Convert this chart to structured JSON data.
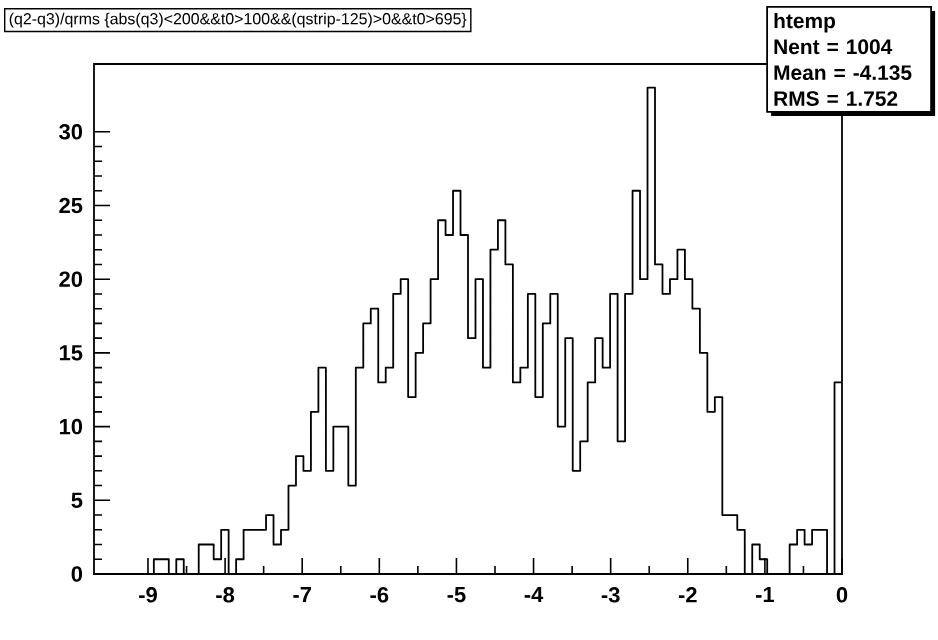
{
  "chart_data": {
    "type": "histogram",
    "title": "(q2-q3)/qrms {abs(q3)<200&&t0>100&&(qstrip-125)>0&&t0>695}",
    "annotations": [
      "htemp",
      "Nent = 1004",
      "Mean  = -4.135",
      "RMS   = 1.752"
    ],
    "bins": [
      -9.7,
      -9.603,
      -9.506,
      -9.409,
      -9.312,
      -9.215,
      -9.118,
      -9.021,
      -8.924,
      -8.827,
      -8.73,
      -8.633,
      -8.536,
      -8.439,
      -8.342,
      -8.245,
      -8.148,
      -8.051,
      -7.954,
      -7.857,
      -7.76,
      -7.663,
      -7.566,
      -7.469,
      -7.372,
      -7.275,
      -7.178,
      -7.081,
      -6.984,
      -6.887,
      -6.79,
      -6.693,
      -6.596,
      -6.499,
      -6.402,
      -6.305,
      -6.208,
      -6.111,
      -6.014,
      -5.917,
      -5.82,
      -5.723,
      -5.626,
      -5.529,
      -5.432,
      -5.335,
      -5.238,
      -5.141,
      -5.044,
      -4.947,
      -4.85,
      -4.753,
      -4.656,
      -4.559,
      -4.462,
      -4.365,
      -4.268,
      -4.171,
      -4.074,
      -3.977,
      -3.88,
      -3.783,
      -3.686,
      -3.589,
      -3.492,
      -3.395,
      -3.298,
      -3.201,
      -3.104,
      -3.007,
      -2.91,
      -2.813,
      -2.716,
      -2.619,
      -2.522,
      -2.425,
      -2.328,
      -2.231,
      -2.134,
      -2.037,
      -1.94,
      -1.843,
      -1.746,
      -1.649,
      -1.552,
      -1.455,
      -1.358,
      -1.261,
      -1.164,
      -1.067,
      -0.97,
      -0.873,
      -0.776,
      -0.679,
      -0.582,
      -0.485,
      -0.388,
      -0.291,
      -0.194,
      -0.097,
      0
    ],
    "values": [
      0,
      0,
      0,
      0,
      0,
      0,
      0,
      0,
      1,
      1,
      0,
      1,
      0,
      0,
      2,
      2,
      1,
      3,
      0,
      1,
      3,
      3,
      3,
      4,
      2,
      3,
      6,
      8,
      7,
      11,
      14,
      7,
      10,
      10,
      6,
      14,
      17,
      18,
      13,
      14,
      19,
      20,
      12,
      15,
      17,
      20,
      24,
      23,
      26,
      23,
      16,
      20,
      14,
      22,
      24,
      21,
      13,
      14,
      19,
      12,
      17,
      19,
      10,
      16,
      7,
      9,
      13,
      16,
      14,
      19,
      9,
      19,
      26,
      20,
      33,
      21,
      19,
      20,
      22,
      20,
      18,
      15,
      11,
      12,
      4,
      4,
      3,
      0,
      2,
      1,
      0,
      0,
      0,
      2,
      3,
      2,
      3,
      3,
      0,
      13
    ],
    "color": "#000000",
    "xlim": [
      -9.7,
      0
    ],
    "ylim": [
      0,
      34.6
    ],
    "xticks": [
      -9,
      -8,
      -7,
      -6,
      -5,
      -4,
      -3,
      -2,
      -1,
      0
    ],
    "yticks": [
      0,
      5,
      10,
      15,
      20,
      25,
      30
    ]
  }
}
